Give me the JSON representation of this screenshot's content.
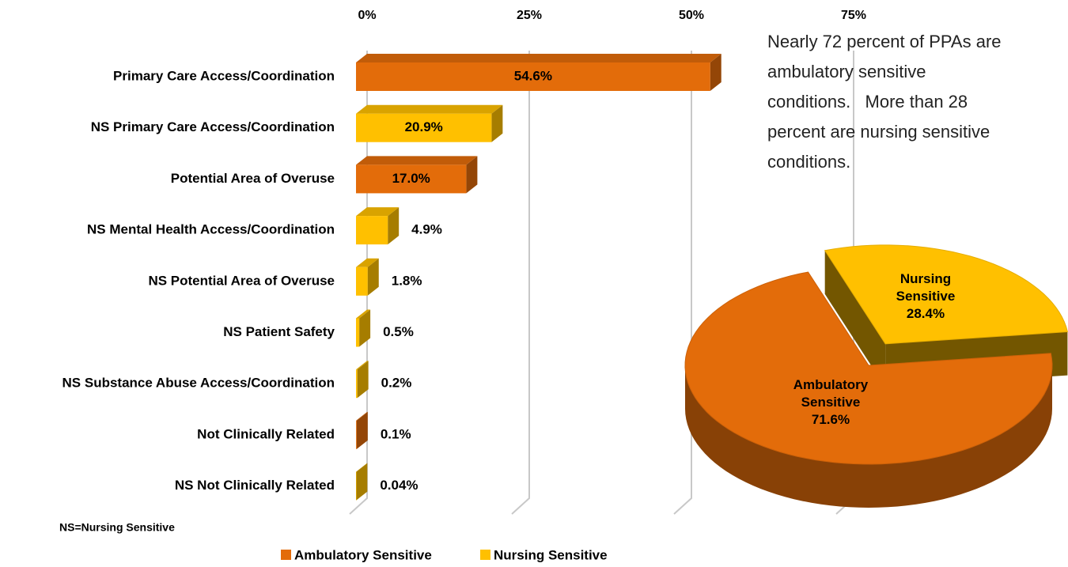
{
  "chart_data": [
    {
      "type": "bar3d",
      "categories": [
        "Primary Care Access/Coordination",
        "NS Primary Care Access/Coordination",
        "Potential Area of Overuse",
        "NS Mental Health Access/Coordination",
        "NS Potential Area of Overuse",
        "NS Patient Safety",
        "NS Substance Abuse Access/Coordination",
        "Not Clinically Related",
        "NS Not Clinically Related"
      ],
      "values": [
        54.6,
        20.9,
        17.0,
        4.9,
        1.8,
        0.5,
        0.2,
        0.1,
        0.04
      ],
      "value_labels": [
        "54.6%",
        "20.9%",
        "17.0%",
        "4.9%",
        "1.8%",
        "0.5%",
        "0.2%",
        "0.1%",
        "0.04%"
      ],
      "colors": [
        "#e36c0a",
        "#ffc000",
        "#e36c0a",
        "#ffc000",
        "#ffc000",
        "#ffc000",
        "#ffc000",
        "#e36c0a",
        "#ffc000"
      ],
      "xlim": [
        0,
        75
      ],
      "xticks": [
        {
          "value": 0,
          "label": "0%"
        },
        {
          "value": 25,
          "label": "25%"
        },
        {
          "value": 50,
          "label": "50%"
        },
        {
          "value": 75,
          "label": "75%"
        }
      ],
      "grid": true,
      "legend": [
        {
          "name": "Ambulatory Sensitive",
          "color": "#e36c0a"
        },
        {
          "name": "Nursing Sensitive",
          "color": "#ffc000"
        }
      ],
      "footnote": "NS=Nursing Sensitive"
    },
    {
      "type": "pie3d",
      "categories": [
        "Ambulatory Sensitive",
        "Nursing Sensitive"
      ],
      "values": [
        71.6,
        28.4
      ],
      "value_labels": [
        "71.6%",
        "28.4%"
      ],
      "colors": [
        "#e36c0a",
        "#ffc000"
      ],
      "exploded": [
        false,
        true
      ],
      "annotation": "Nearly 72 percent of PPAs are ambulatory sensitive conditions.   More than 28 percent are nursing sensitive conditions."
    }
  ]
}
